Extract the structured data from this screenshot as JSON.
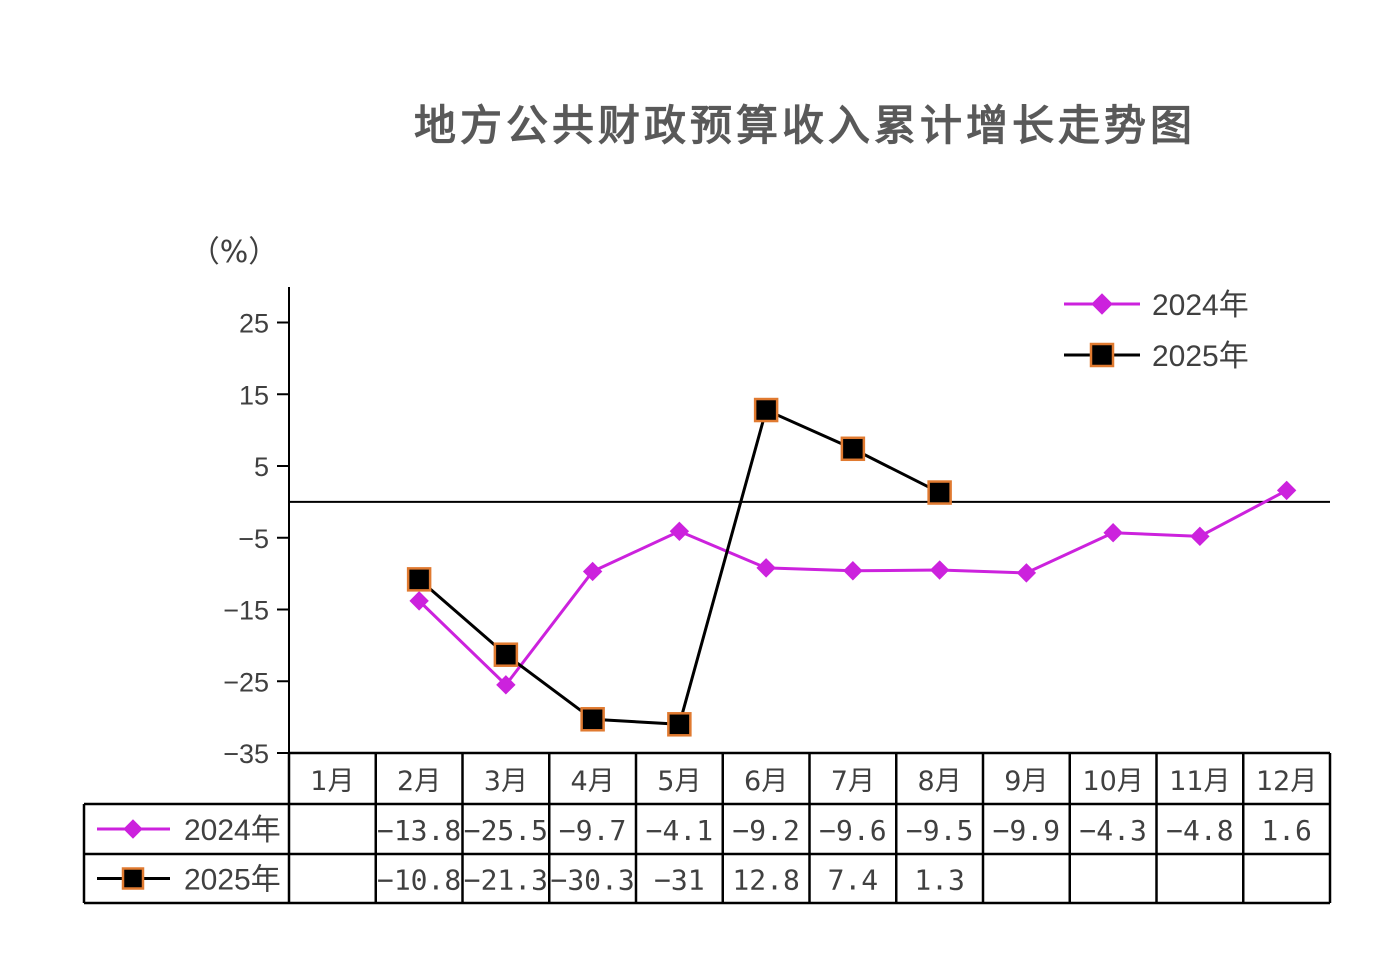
{
  "chart_data": {
    "type": "line",
    "title": "地方公共财政预算收入累计增长走势图",
    "ylabel": "（%）",
    "ylim": [
      -35,
      30
    ],
    "yticks": [
      25,
      15,
      5,
      -5,
      -15,
      -25,
      -35
    ],
    "categories": [
      "1月",
      "2月",
      "3月",
      "4月",
      "5月",
      "6月",
      "7月",
      "8月",
      "9月",
      "10月",
      "11月",
      "12月"
    ],
    "series": [
      {
        "name": "2024年",
        "color": "#CC22DD",
        "marker": "diamond",
        "values": [
          null,
          -13.8,
          -25.5,
          -9.7,
          -4.1,
          -9.2,
          -9.6,
          -9.5,
          -9.9,
          -4.3,
          -4.8,
          1.6
        ],
        "labels": [
          "",
          "-13.8",
          "-25.5",
          "-9.7",
          "-4.1",
          "-9.2",
          "-9.6",
          "-9.5",
          "-9.9",
          "-4.3",
          "-4.8",
          "1.6"
        ]
      },
      {
        "name": "2025年",
        "color": "#000000",
        "marker_edge_color": "#E07A30",
        "marker": "square",
        "values": [
          null,
          -10.8,
          -21.3,
          -30.3,
          -31,
          12.8,
          7.4,
          1.3,
          null,
          null,
          null,
          null
        ],
        "labels": [
          "",
          "-10.8",
          "-21.3",
          "-30.3",
          "-31",
          "12.8",
          "7.4",
          "1.3",
          "",
          "",
          "",
          ""
        ]
      }
    ],
    "legend_position": "top-right",
    "grid": false,
    "data_table": true
  }
}
